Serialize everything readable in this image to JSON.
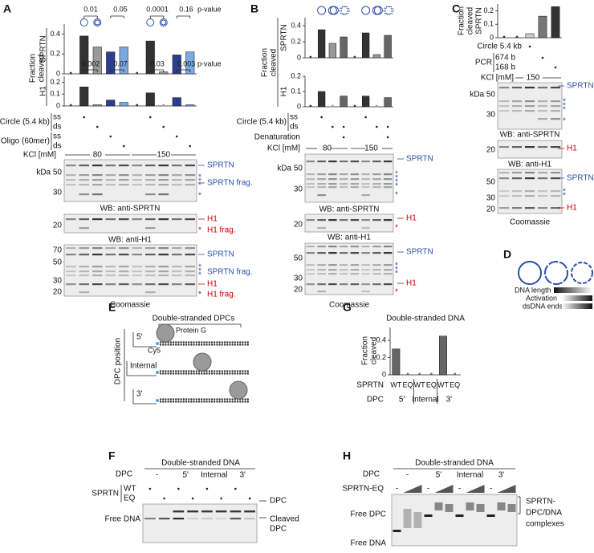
{
  "chart_data": [
    {
      "type": "bar",
      "ylabel": "SPRTN",
      "values": [
        0,
        0.38,
        0.27,
        0.22,
        0.27,
        0,
        0.33,
        0.02,
        0.19,
        0.22
      ],
      "colors": [
        "#333333",
        "#333333",
        "#9a9a9a",
        "#2b3f8f",
        "#7aa8e0",
        "#333333",
        "#333333",
        "#9a9a9a",
        "#2b3f8f",
        "#7aa8e0"
      ],
      "ylim": [
        0,
        0.5
      ],
      "yticks": [
        0,
        0.2,
        0.4
      ]
    },
    {
      "type": "bar",
      "ylabel": "H1",
      "values": [
        0,
        0.16,
        0.01,
        0.05,
        0.03,
        0,
        0.11,
        0,
        0.07,
        0.01
      ],
      "colors": [
        "#333333",
        "#333333",
        "#9a9a9a",
        "#2b3f8f",
        "#7aa8e0",
        "#333333",
        "#333333",
        "#9a9a9a",
        "#2b3f8f",
        "#7aa8e0"
      ],
      "ylim": [
        0,
        0.25
      ],
      "yticks": [
        0,
        0.1,
        0.2
      ]
    },
    {
      "type": "bar",
      "ylabel": "SPRTN",
      "values": [
        0,
        0.35,
        0.18,
        0.26,
        0,
        0.31,
        0.04,
        0.28
      ],
      "colors": [
        "#333333",
        "#333333",
        "#9a9a9a",
        "#666666",
        "#333333",
        "#333333",
        "#9a9a9a",
        "#666666"
      ],
      "ylim": [
        0,
        0.5
      ],
      "yticks": [
        0,
        0.2,
        0.4
      ]
    },
    {
      "type": "bar",
      "ylabel": "H1",
      "values": [
        0,
        0.1,
        0,
        0.07,
        0,
        0.07,
        0,
        0.06
      ],
      "colors": [
        "#333333",
        "#333333",
        "#9a9a9a",
        "#666666",
        "#333333",
        "#333333",
        "#9a9a9a",
        "#666666"
      ],
      "ylim": [
        0,
        0.2
      ],
      "yticks": [
        0,
        0.1,
        0.2
      ]
    },
    {
      "type": "bar",
      "values": [
        0,
        0,
        0.03,
        0.16,
        0.23
      ],
      "colors": [
        "#333333",
        "#333333",
        "#cccccc",
        "#777777",
        "#333333"
      ],
      "ylim": [
        0,
        0.25
      ],
      "yticks": [
        0,
        0.1,
        0.2
      ]
    },
    {
      "type": "bar",
      "categories": [
        "WT",
        "EQ",
        "WT",
        "EQ",
        "WT",
        "EQ"
      ],
      "values": [
        0.3,
        0,
        0,
        0,
        0.45,
        0
      ],
      "colors": [
        "#666666",
        "#666666",
        "#666666",
        "#666666",
        "#666666",
        "#666666"
      ],
      "ylim": [
        0,
        0.55
      ],
      "yticks": [
        0,
        0.2,
        0.4
      ]
    }
  ],
  "panels": {
    "A": {
      "letter": "A",
      "sprtn_p": [
        "0.01",
        "0.05",
        "0.0001",
        "0.16"
      ],
      "h1_p": [
        "0.002",
        "0.07",
        "0.03",
        "0.003"
      ],
      "p_value_labels": [
        "p-value",
        "p-value"
      ],
      "fraction": [
        "Fraction",
        "cleaved"
      ],
      "rows": [
        "Circle (5.4 kb)",
        "ss",
        "ds",
        "Oligo (60mer)",
        "ss",
        "ds"
      ],
      "kcl": "KCl [mM]",
      "kcl_values": [
        "80",
        "150"
      ],
      "star": "*",
      "blot1": {
        "markers": [
          "kDa 50",
          "30"
        ],
        "labels": [
          "SPRTN",
          "SPRTN frag."
        ],
        "caption": "WB: anti-SPRTN"
      },
      "blot2": {
        "markers": [
          "20"
        ],
        "labels": [
          "H1",
          "H1 frag."
        ],
        "caption": "WB: anti-H1"
      },
      "blot3": {
        "markers": [
          "70",
          "50",
          "30",
          "20"
        ],
        "labels": [
          "SPRTN",
          "SPRTN frag.",
          "H1",
          "H1 frag."
        ],
        "caption": "Coomassie"
      }
    },
    "B": {
      "letter": "B",
      "fraction": [
        "Fraction",
        "cleaved"
      ],
      "rows": [
        "Circle (5.4 kb)",
        "ss",
        "ds",
        "Denaturation"
      ],
      "kcl": "KCl [mM]",
      "kcl_values": [
        "80",
        "150"
      ],
      "star": "*",
      "blot1": {
        "markers": [
          "kDa 50",
          "30"
        ],
        "labels": [
          "SPRTN"
        ],
        "caption": "WB: anti-SPRTN"
      },
      "blot2": {
        "markers": [
          "20"
        ],
        "labels": [
          "H1"
        ],
        "caption": "WB: anti-H1"
      },
      "blot3": {
        "markers": [
          "50",
          "30",
          "20"
        ],
        "labels": [
          "SPRTN",
          "H1"
        ],
        "caption": "Coomassie"
      }
    },
    "C": {
      "letter": "C",
      "fraction": [
        "Fraction",
        "cleaved",
        "SPRTN"
      ],
      "rows": [
        "Circle 5.4 kb",
        "PCR",
        "674 b",
        "168 b"
      ],
      "kcl": "KCl [mM]",
      "kcl_values": [
        "150"
      ],
      "star": "*",
      "blot1": {
        "markers": [
          "kDa 50",
          "30"
        ],
        "labels": [
          "SPRTN"
        ],
        "caption": "WB: anti-SPRTN"
      },
      "blot2": {
        "markers": [
          "20"
        ],
        "labels": [
          "H1"
        ],
        "caption": "WB: anti-H1"
      },
      "blot3": {
        "markers": [
          "50",
          "30",
          "20"
        ],
        "labels": [
          "SPRTN",
          "H1"
        ],
        "caption": "Coomassie"
      }
    },
    "D": {
      "letter": "D",
      "scales": [
        "DNA length",
        "Activation",
        "dsDNA ends"
      ]
    },
    "E": {
      "letter": "E",
      "title": "Double-stranded DPCs",
      "axis": "DPC position",
      "positions": [
        "5'",
        "Internal",
        "3'"
      ],
      "protein": "Protein G",
      "dye": "Cy5"
    },
    "F": {
      "letter": "F",
      "title": "Double-stranded DNA",
      "dpc": "DPC",
      "groups": [
        "-",
        "5'",
        "Internal",
        "3'"
      ],
      "sprtn": "SPRTN",
      "variants": [
        "WT",
        "EQ"
      ],
      "free_dna": "Free DNA",
      "dpc_label": "DPC",
      "cleaved": [
        "Cleaved",
        "DPC"
      ]
    },
    "G": {
      "letter": "G",
      "title": "Double-stranded DNA",
      "fraction": [
        "Fraction",
        "cleaved"
      ],
      "sprtn": "SPRTN",
      "dpc": "DPC",
      "dpc_values": [
        "5'",
        "Internal",
        "3'"
      ]
    },
    "H": {
      "letter": "H",
      "title": "Double-stranded DNA",
      "dpc": "DPC",
      "groups": [
        "-",
        "5'",
        "Internal",
        "3'"
      ],
      "sprtn_eq": "SPRTN-EQ",
      "minus": [
        "-",
        "-",
        "-",
        "-"
      ],
      "free_dpc": "Free DPC",
      "free_dna": "Free DNA",
      "complex": [
        "SPRTN-",
        "DPC/DNA",
        "complexes"
      ]
    }
  }
}
